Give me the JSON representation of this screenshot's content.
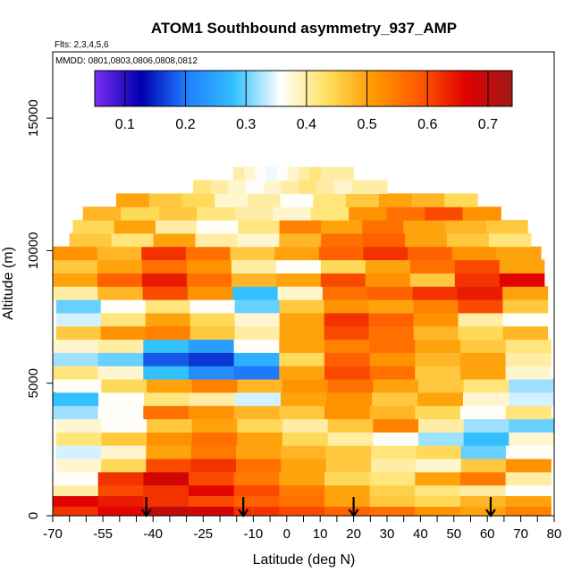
{
  "chart_data": {
    "type": "heatmap",
    "title": "ATOM1 Southbound asymmetry_937_AMP",
    "flights_label": "Flts: 2,3,4,5,6",
    "dates_label": "MMDD: 0801,0803,0806,0808,0812",
    "xlabel": "Latitude (deg N)",
    "ylabel": "Altitude (m)",
    "xlim": [
      -70,
      80
    ],
    "ylim": [
      0,
      17500
    ],
    "x_tick_labels": [
      "-70",
      "-55",
      "-40",
      "-25",
      "-10",
      "0",
      "10",
      "20",
      "30",
      "40",
      "50",
      "60",
      "70",
      "80"
    ],
    "x_ticks": [
      -70,
      -55,
      -40,
      -25,
      -10,
      0,
      10,
      20,
      30,
      40,
      50,
      60,
      70,
      80
    ],
    "x_minor_ticks": [
      -65,
      -60,
      -50,
      -45,
      -35,
      -30,
      -20,
      -15,
      -5,
      5,
      15,
      25,
      35,
      45,
      55,
      65,
      75
    ],
    "y_tick_labels": [
      "0",
      "5000",
      "10000",
      "15000"
    ],
    "y_ticks": [
      0,
      5000,
      10000,
      15000
    ],
    "colorbar": {
      "range": [
        0.05,
        0.74
      ],
      "tick_labels": [
        "0.1",
        "0.2",
        "0.3",
        "0.4",
        "0.5",
        "0.6",
        "0.7"
      ],
      "ticks": [
        0.1,
        0.2,
        0.3,
        0.4,
        0.5,
        0.6,
        0.7
      ],
      "colors": [
        "#7b2cf0",
        "#0000b0",
        "#1f7fff",
        "#33c0ff",
        "#ffffff",
        "#ffe060",
        "#ff9a00",
        "#ff5a00",
        "#e00000",
        "#a01818"
      ]
    },
    "arrows_latitude": [
      -42,
      -13,
      20,
      61
    ],
    "layer_altitude_m": [
      200,
      600,
      1000,
      1400,
      1900,
      2400,
      2900,
      3400,
      3900,
      4400,
      4900,
      5400,
      5900,
      6400,
      6900,
      7400,
      7900,
      8400,
      8900,
      9400,
      9900,
      10400,
      10900,
      11400,
      11900,
      12400,
      12900
    ],
    "layer_extent_deg": [
      [
        -70,
        79
      ],
      [
        -70,
        79
      ],
      [
        -70,
        79
      ],
      [
        -70,
        79
      ],
      [
        -69,
        79
      ],
      [
        -69,
        79
      ],
      [
        -69,
        80
      ],
      [
        -69,
        80
      ],
      [
        -70,
        79
      ],
      [
        -70,
        80
      ],
      [
        -69,
        80
      ],
      [
        -70,
        79
      ],
      [
        -70,
        79
      ],
      [
        -70,
        79
      ],
      [
        -69,
        78
      ],
      [
        -69,
        78
      ],
      [
        -69,
        78
      ],
      [
        -70,
        78
      ],
      [
        -70,
        77
      ],
      [
        -70,
        77
      ],
      [
        -70,
        76
      ],
      [
        -65,
        73
      ],
      [
        -64,
        72
      ],
      [
        -61,
        64
      ],
      [
        -51,
        57
      ],
      [
        -28,
        30
      ],
      [
        -16,
        20
      ]
    ],
    "layer_values": [
      [
        0.62,
        0.66,
        0.7,
        0.68,
        0.62,
        0.6,
        0.58,
        0.56,
        0.52,
        0.5,
        0.54
      ],
      [
        0.66,
        0.64,
        0.62,
        0.6,
        0.58,
        0.56,
        0.5,
        0.46,
        0.44,
        0.48,
        0.5
      ],
      [
        0.4,
        0.6,
        0.62,
        0.66,
        0.6,
        0.55,
        0.5,
        0.45,
        0.42,
        0.4,
        0.36
      ],
      [
        0.36,
        0.62,
        0.68,
        0.6,
        0.55,
        0.5,
        0.44,
        0.42,
        0.5,
        0.55,
        0.4
      ],
      [
        0.38,
        0.44,
        0.6,
        0.62,
        0.56,
        0.5,
        0.46,
        0.4,
        0.38,
        0.46,
        0.52
      ],
      [
        0.34,
        0.38,
        0.5,
        0.55,
        0.5,
        0.48,
        0.46,
        0.42,
        0.44,
        0.3,
        0.36
      ],
      [
        0.42,
        0.46,
        0.52,
        0.56,
        0.5,
        0.44,
        0.4,
        0.36,
        0.32,
        0.28,
        0.38
      ],
      [
        0.38,
        0.36,
        0.46,
        0.5,
        0.44,
        0.4,
        0.46,
        0.54,
        0.4,
        0.32,
        0.3
      ],
      [
        0.32,
        0.36,
        0.56,
        0.52,
        0.48,
        0.46,
        0.52,
        0.48,
        0.44,
        0.36,
        0.42
      ],
      [
        0.28,
        0.36,
        0.42,
        0.4,
        0.34,
        0.5,
        0.52,
        0.46,
        0.5,
        0.38,
        0.34
      ],
      [
        0.36,
        0.44,
        0.5,
        0.54,
        0.48,
        0.52,
        0.56,
        0.5,
        0.46,
        0.42,
        0.32
      ],
      [
        0.42,
        0.38,
        0.28,
        0.22,
        0.2,
        0.5,
        0.6,
        0.56,
        0.46,
        0.5,
        0.38
      ],
      [
        0.32,
        0.3,
        0.18,
        0.16,
        0.26,
        0.44,
        0.58,
        0.52,
        0.48,
        0.5,
        0.4
      ],
      [
        0.38,
        0.4,
        0.28,
        0.24,
        0.36,
        0.5,
        0.54,
        0.56,
        0.5,
        0.46,
        0.42
      ],
      [
        0.46,
        0.52,
        0.54,
        0.46,
        0.4,
        0.5,
        0.6,
        0.56,
        0.48,
        0.44,
        0.48
      ],
      [
        0.34,
        0.42,
        0.5,
        0.44,
        0.38,
        0.5,
        0.62,
        0.58,
        0.52,
        0.4,
        0.36
      ],
      [
        0.3,
        0.36,
        0.42,
        0.36,
        0.3,
        0.46,
        0.52,
        0.5,
        0.54,
        0.6,
        0.46
      ],
      [
        0.4,
        0.48,
        0.6,
        0.52,
        0.28,
        0.38,
        0.56,
        0.58,
        0.62,
        0.64,
        0.5
      ],
      [
        0.5,
        0.58,
        0.64,
        0.56,
        0.48,
        0.5,
        0.6,
        0.52,
        0.46,
        0.62,
        0.66
      ],
      [
        0.46,
        0.5,
        0.56,
        0.52,
        0.4,
        0.36,
        0.44,
        0.5,
        0.56,
        0.6,
        0.5
      ],
      [
        0.52,
        0.48,
        0.62,
        0.56,
        0.46,
        0.5,
        0.58,
        0.62,
        0.58,
        0.52,
        0.5
      ],
      [
        0.46,
        0.42,
        0.5,
        0.4,
        0.38,
        0.48,
        0.56,
        0.58,
        0.5,
        0.46,
        0.42
      ],
      [
        0.44,
        0.5,
        0.4,
        0.36,
        0.42,
        0.54,
        0.5,
        0.56,
        0.5,
        0.48,
        0.46
      ],
      [
        0.48,
        0.44,
        0.46,
        0.42,
        0.4,
        0.38,
        0.42,
        0.52,
        0.56,
        0.6,
        0.52
      ],
      [
        0.5,
        0.46,
        0.44,
        0.38,
        0.4,
        0.36,
        0.42,
        0.46,
        0.5,
        0.48,
        0.44
      ],
      [
        0.42,
        0.4,
        0.38,
        0.36,
        0.38,
        0.4,
        0.42,
        0.4,
        0.38,
        0.4,
        0.4
      ],
      [
        0.4,
        0.38,
        0.36,
        0.35,
        0.36,
        0.38,
        0.4,
        0.42,
        0.4,
        0.4,
        0.4
      ]
    ]
  }
}
